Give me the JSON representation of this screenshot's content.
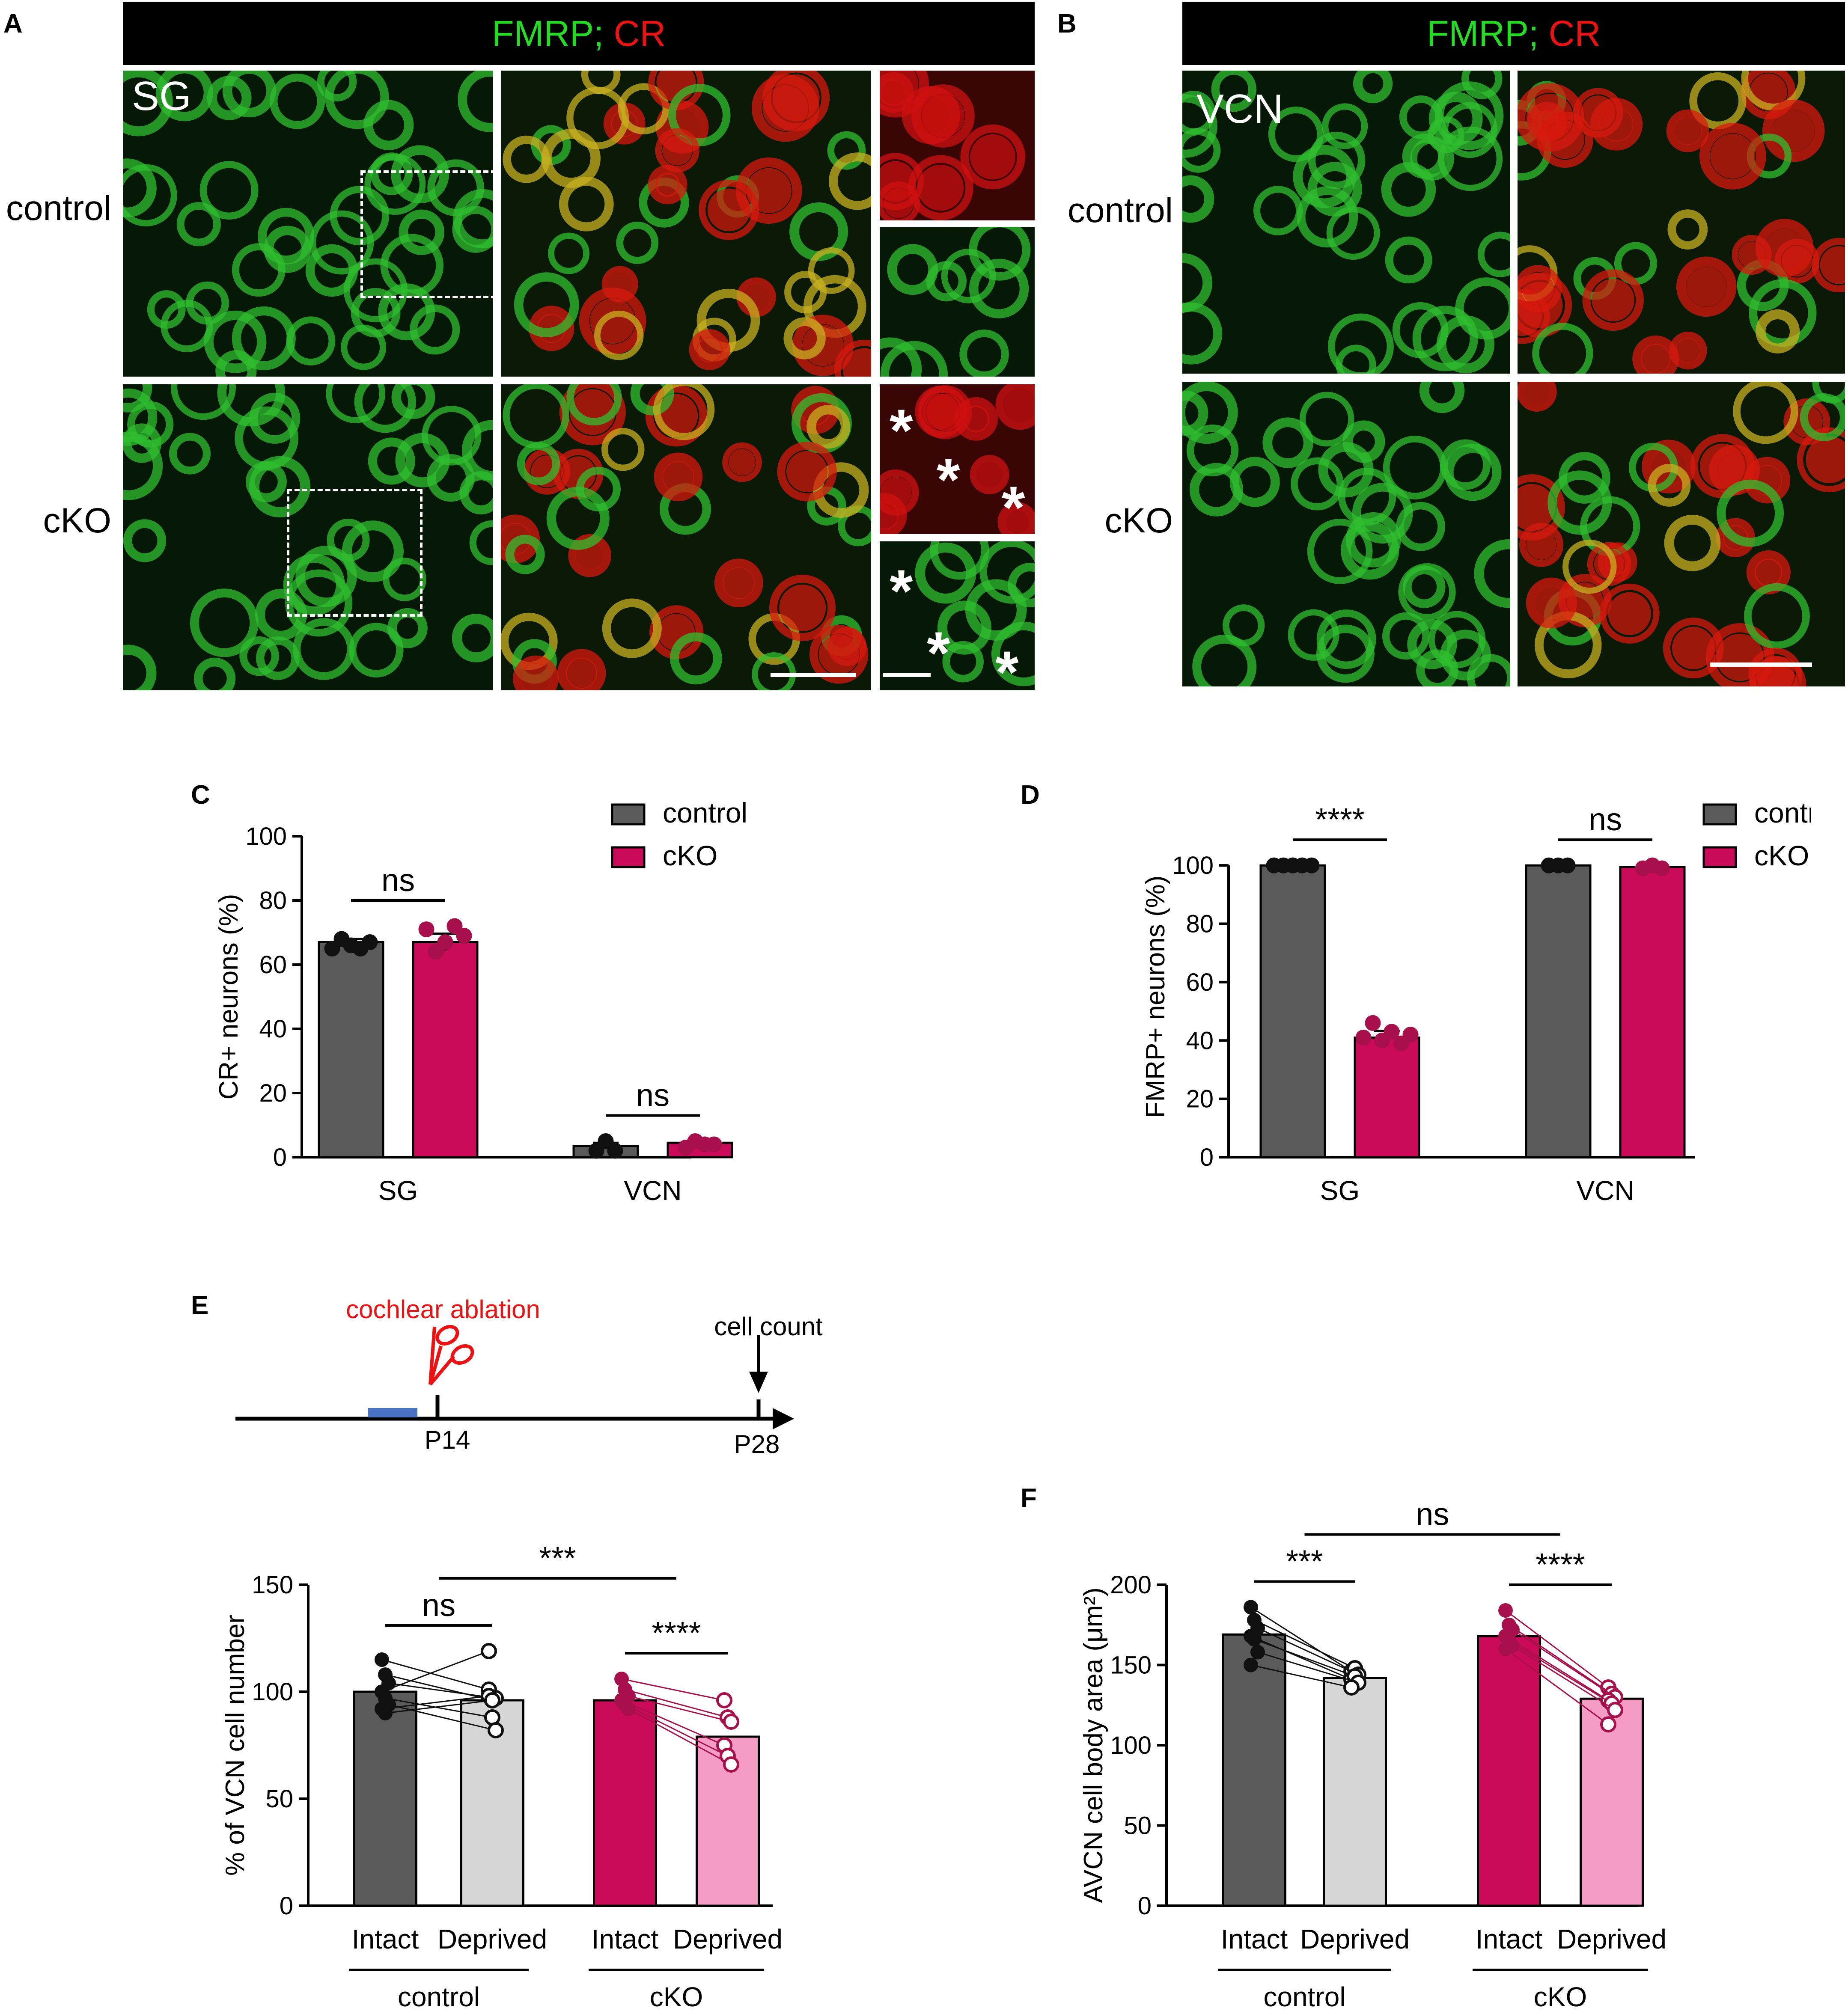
{
  "panels": {
    "A": {
      "label": "A",
      "header_fmrp": "FMRP;",
      "header_cr": "CR",
      "region": "SG",
      "rows": [
        "control",
        "cKO"
      ]
    },
    "B": {
      "label": "B",
      "header_fmrp": "FMRP;",
      "header_cr": "CR",
      "region": "VCN",
      "rows": [
        "control",
        "cKO"
      ]
    },
    "C": {
      "label": "C"
    },
    "D": {
      "label": "D"
    },
    "E": {
      "label": "E",
      "timeline": {
        "ablation": "cochlear ablation",
        "count": "cell count",
        "t1": "P14",
        "t2": "P28"
      }
    },
    "F": {
      "label": "F"
    }
  },
  "asterisk": "*",
  "colors": {
    "control": "#5a5a5a",
    "cko": "#cc0a5a",
    "control_light": "#d6d6d6",
    "cko_light": "#f59cc4",
    "fmrp_green": "#22dd22",
    "cr_red": "#ee1111"
  },
  "chart_data": [
    {
      "id": "C",
      "type": "bar",
      "ylabel": "CR+ neurons (%)",
      "ylim": [
        0,
        100
      ],
      "yticks": [
        0,
        20,
        40,
        60,
        80,
        100
      ],
      "categories": [
        "SG",
        "VCN"
      ],
      "legend": [
        "control",
        "cKO"
      ],
      "series": [
        {
          "name": "control",
          "values": [
            67,
            3.5
          ],
          "points": [
            [
              65,
              68,
              66,
              65,
              67
            ],
            [
              2,
              5,
              2
            ]
          ]
        },
        {
          "name": "cKO",
          "values": [
            67,
            4.5
          ],
          "points": [
            [
              71,
              64,
              67,
              72,
              69
            ],
            [
              3,
              5,
              4,
              4
            ]
          ]
        }
      ],
      "sig": [
        {
          "text": "ns",
          "group": 0
        },
        {
          "text": "ns",
          "group": 1
        }
      ]
    },
    {
      "id": "D",
      "type": "bar",
      "ylabel": "FMRP+ neurons (%)",
      "ylim": [
        0,
        110
      ],
      "yticks": [
        0,
        20,
        40,
        60,
        80,
        100
      ],
      "categories": [
        "SG",
        "VCN"
      ],
      "legend": [
        "control",
        "cKO"
      ],
      "series": [
        {
          "name": "control",
          "values": [
            100,
            100
          ],
          "points": [
            [
              100,
              100,
              100,
              100,
              100
            ],
            [
              100,
              100,
              100
            ]
          ]
        },
        {
          "name": "cKO",
          "values": [
            41,
            99.5
          ],
          "points": [
            [
              41,
              46,
              40,
              43,
              39,
              42
            ],
            [
              99,
              100,
              99
            ]
          ]
        }
      ],
      "sig": [
        {
          "text": "****",
          "group": 0
        },
        {
          "text": "ns",
          "group": 1
        }
      ]
    },
    {
      "id": "E",
      "type": "bar",
      "ylabel": "% of VCN cell number",
      "ylim": [
        0,
        150
      ],
      "yticks": [
        0,
        50,
        100,
        150
      ],
      "categories": [
        "Intact",
        "Deprived",
        "Intact",
        "Deprived"
      ],
      "groups": [
        "control",
        "cKO"
      ],
      "values": [
        100,
        96,
        96,
        79
      ],
      "pairs": {
        "control": [
          [
            115,
            101
          ],
          [
            108,
            96
          ],
          [
            104,
            97
          ],
          [
            100,
            119
          ],
          [
            97,
            88
          ],
          [
            94,
            82
          ],
          [
            92,
            98
          ],
          [
            90,
            96
          ]
        ],
        "cKO": [
          [
            106,
            96
          ],
          [
            101,
            88
          ],
          [
            98,
            86
          ],
          [
            96,
            75
          ],
          [
            94,
            70
          ],
          [
            92,
            66
          ]
        ]
      },
      "sig": [
        {
          "text": "ns",
          "from": 0,
          "to": 1
        },
        {
          "text": "****",
          "from": 2,
          "to": 3
        },
        {
          "text": "***",
          "from": 0.5,
          "to": 2.5
        }
      ]
    },
    {
      "id": "F",
      "type": "bar",
      "ylabel": "AVCN cell body area (μm²)",
      "ylim": [
        0,
        200
      ],
      "yticks": [
        0,
        50,
        100,
        150,
        200
      ],
      "categories": [
        "Intact",
        "Deprived",
        "Intact",
        "Deprived"
      ],
      "groups": [
        "control",
        "cKO"
      ],
      "values": [
        169,
        142,
        168,
        129
      ],
      "pairs": {
        "control": [
          [
            186,
            146
          ],
          [
            178,
            148
          ],
          [
            173,
            144
          ],
          [
            168,
            141
          ],
          [
            166,
            143
          ],
          [
            158,
            139
          ],
          [
            150,
            136
          ]
        ],
        "cKO": [
          [
            184,
            136
          ],
          [
            175,
            132
          ],
          [
            172,
            130
          ],
          [
            168,
            128
          ],
          [
            165,
            126
          ],
          [
            162,
            122
          ],
          [
            160,
            113
          ]
        ]
      },
      "sig": [
        {
          "text": "***",
          "from": 0,
          "to": 1
        },
        {
          "text": "****",
          "from": 2,
          "to": 3
        },
        {
          "text": "ns",
          "from": 0.5,
          "to": 2.5
        }
      ]
    }
  ]
}
